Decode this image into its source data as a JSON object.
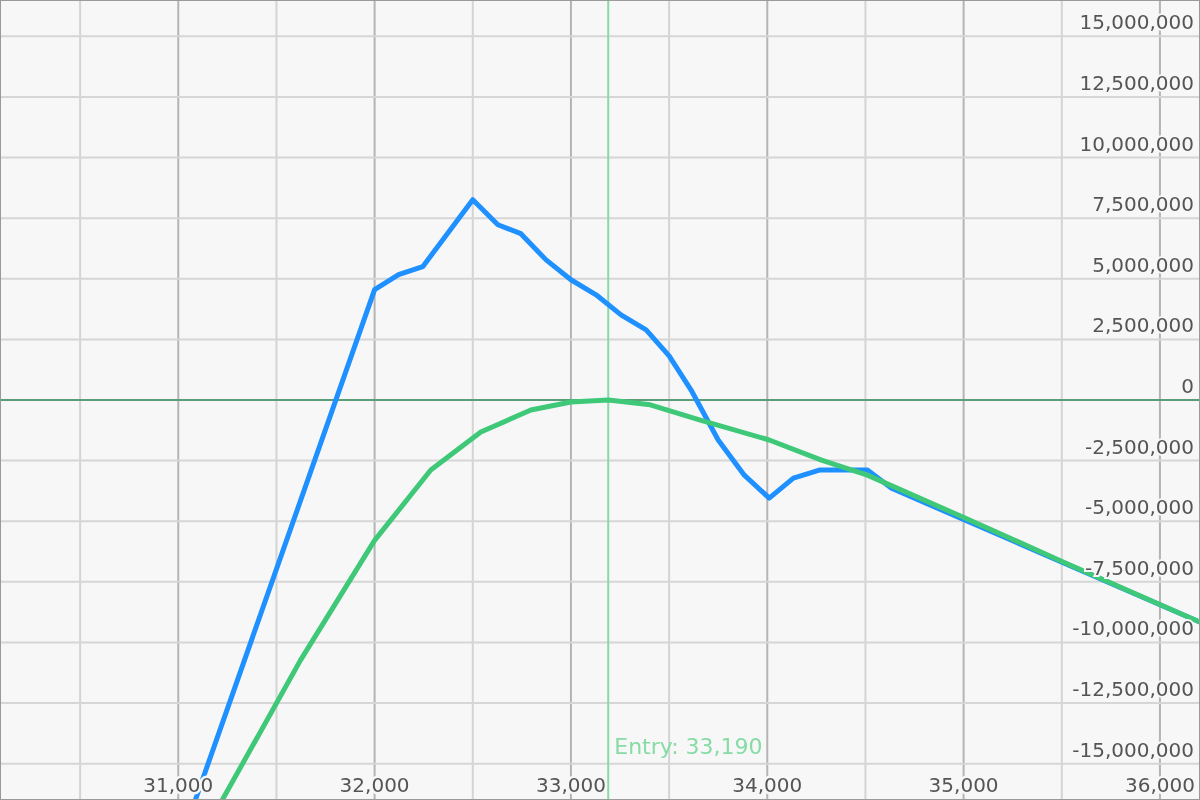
{
  "chart_data": {
    "type": "line",
    "x": [
      31087,
      32000,
      32122,
      32245,
      32500,
      32628,
      32745,
      32872,
      33000,
      33128,
      33255,
      33383,
      33500,
      33612,
      33750,
      33883,
      34010,
      34133,
      34265,
      34510,
      34633,
      36200
    ],
    "series": [
      {
        "color": "#1e90ff",
        "values": [
          -16500000,
          4550000,
          5170000,
          5500000,
          8260000,
          7230000,
          6860000,
          5790000,
          4960000,
          4340000,
          3510000,
          2890000,
          1820000,
          410000,
          -1650000,
          -3100000,
          -4050000,
          -3220000,
          -2890000,
          -2890000,
          -3640000,
          -9150000
        ]
      },
      {
        "color": "#3ec878",
        "x": [
          31224,
          31622,
          32000,
          32286,
          32541,
          32796,
          33000,
          33190,
          33404,
          33659,
          34010,
          34276,
          34510,
          35010,
          35510,
          36200
        ],
        "values": [
          -16500000,
          -10740000,
          -5790000,
          -2890000,
          -1320000,
          -410000,
          -80000,
          0,
          -200000,
          -830000,
          -1650000,
          -2480000,
          -3100000,
          -4880000,
          -6690000,
          -9150000
        ]
      }
    ],
    "xlim": [
      30092,
      36204
    ],
    "ylim": [
      -16500000,
      16500000
    ],
    "xticks": [
      {
        "value": 30500,
        "label": null
      },
      {
        "value": 31000,
        "label": "31,000"
      },
      {
        "value": 31500,
        "label": null
      },
      {
        "value": 32000,
        "label": "32,000"
      },
      {
        "value": 32500,
        "label": null
      },
      {
        "value": 33000,
        "label": "33,000"
      },
      {
        "value": 33500,
        "label": null
      },
      {
        "value": 34000,
        "label": "34,000"
      },
      {
        "value": 34500,
        "label": null
      },
      {
        "value": 35000,
        "label": "35,000"
      },
      {
        "value": 35500,
        "label": null
      },
      {
        "value": 36000,
        "label": "36,000"
      }
    ],
    "yticks": [
      {
        "value": -15000000,
        "label": "-15,000,000"
      },
      {
        "value": -12500000,
        "label": "-12,500,000"
      },
      {
        "value": -10000000,
        "label": "-10,000,000"
      },
      {
        "value": -7500000,
        "label": "-7,500,000"
      },
      {
        "value": -5000000,
        "label": "-5,000,000"
      },
      {
        "value": -2500000,
        "label": "-2,500,000"
      },
      {
        "value": 0,
        "label": "0"
      },
      {
        "value": 2500000,
        "label": "2,500,000"
      },
      {
        "value": 5000000,
        "label": "5,000,000"
      },
      {
        "value": 7500000,
        "label": "7,500,000"
      },
      {
        "value": 10000000,
        "label": "10,000,000"
      },
      {
        "value": 12500000,
        "label": "12,500,000"
      },
      {
        "value": 15000000,
        "label": "15,000,000"
      }
    ],
    "grid": true,
    "marker": "none",
    "line_style": "solid",
    "ref_lines": [
      {
        "axis": "x",
        "value": 33190,
        "label": "Entry: 33,190",
        "color": "#86dca4"
      },
      {
        "axis": "y",
        "value": 0,
        "color": "#5a9e78"
      }
    ]
  }
}
